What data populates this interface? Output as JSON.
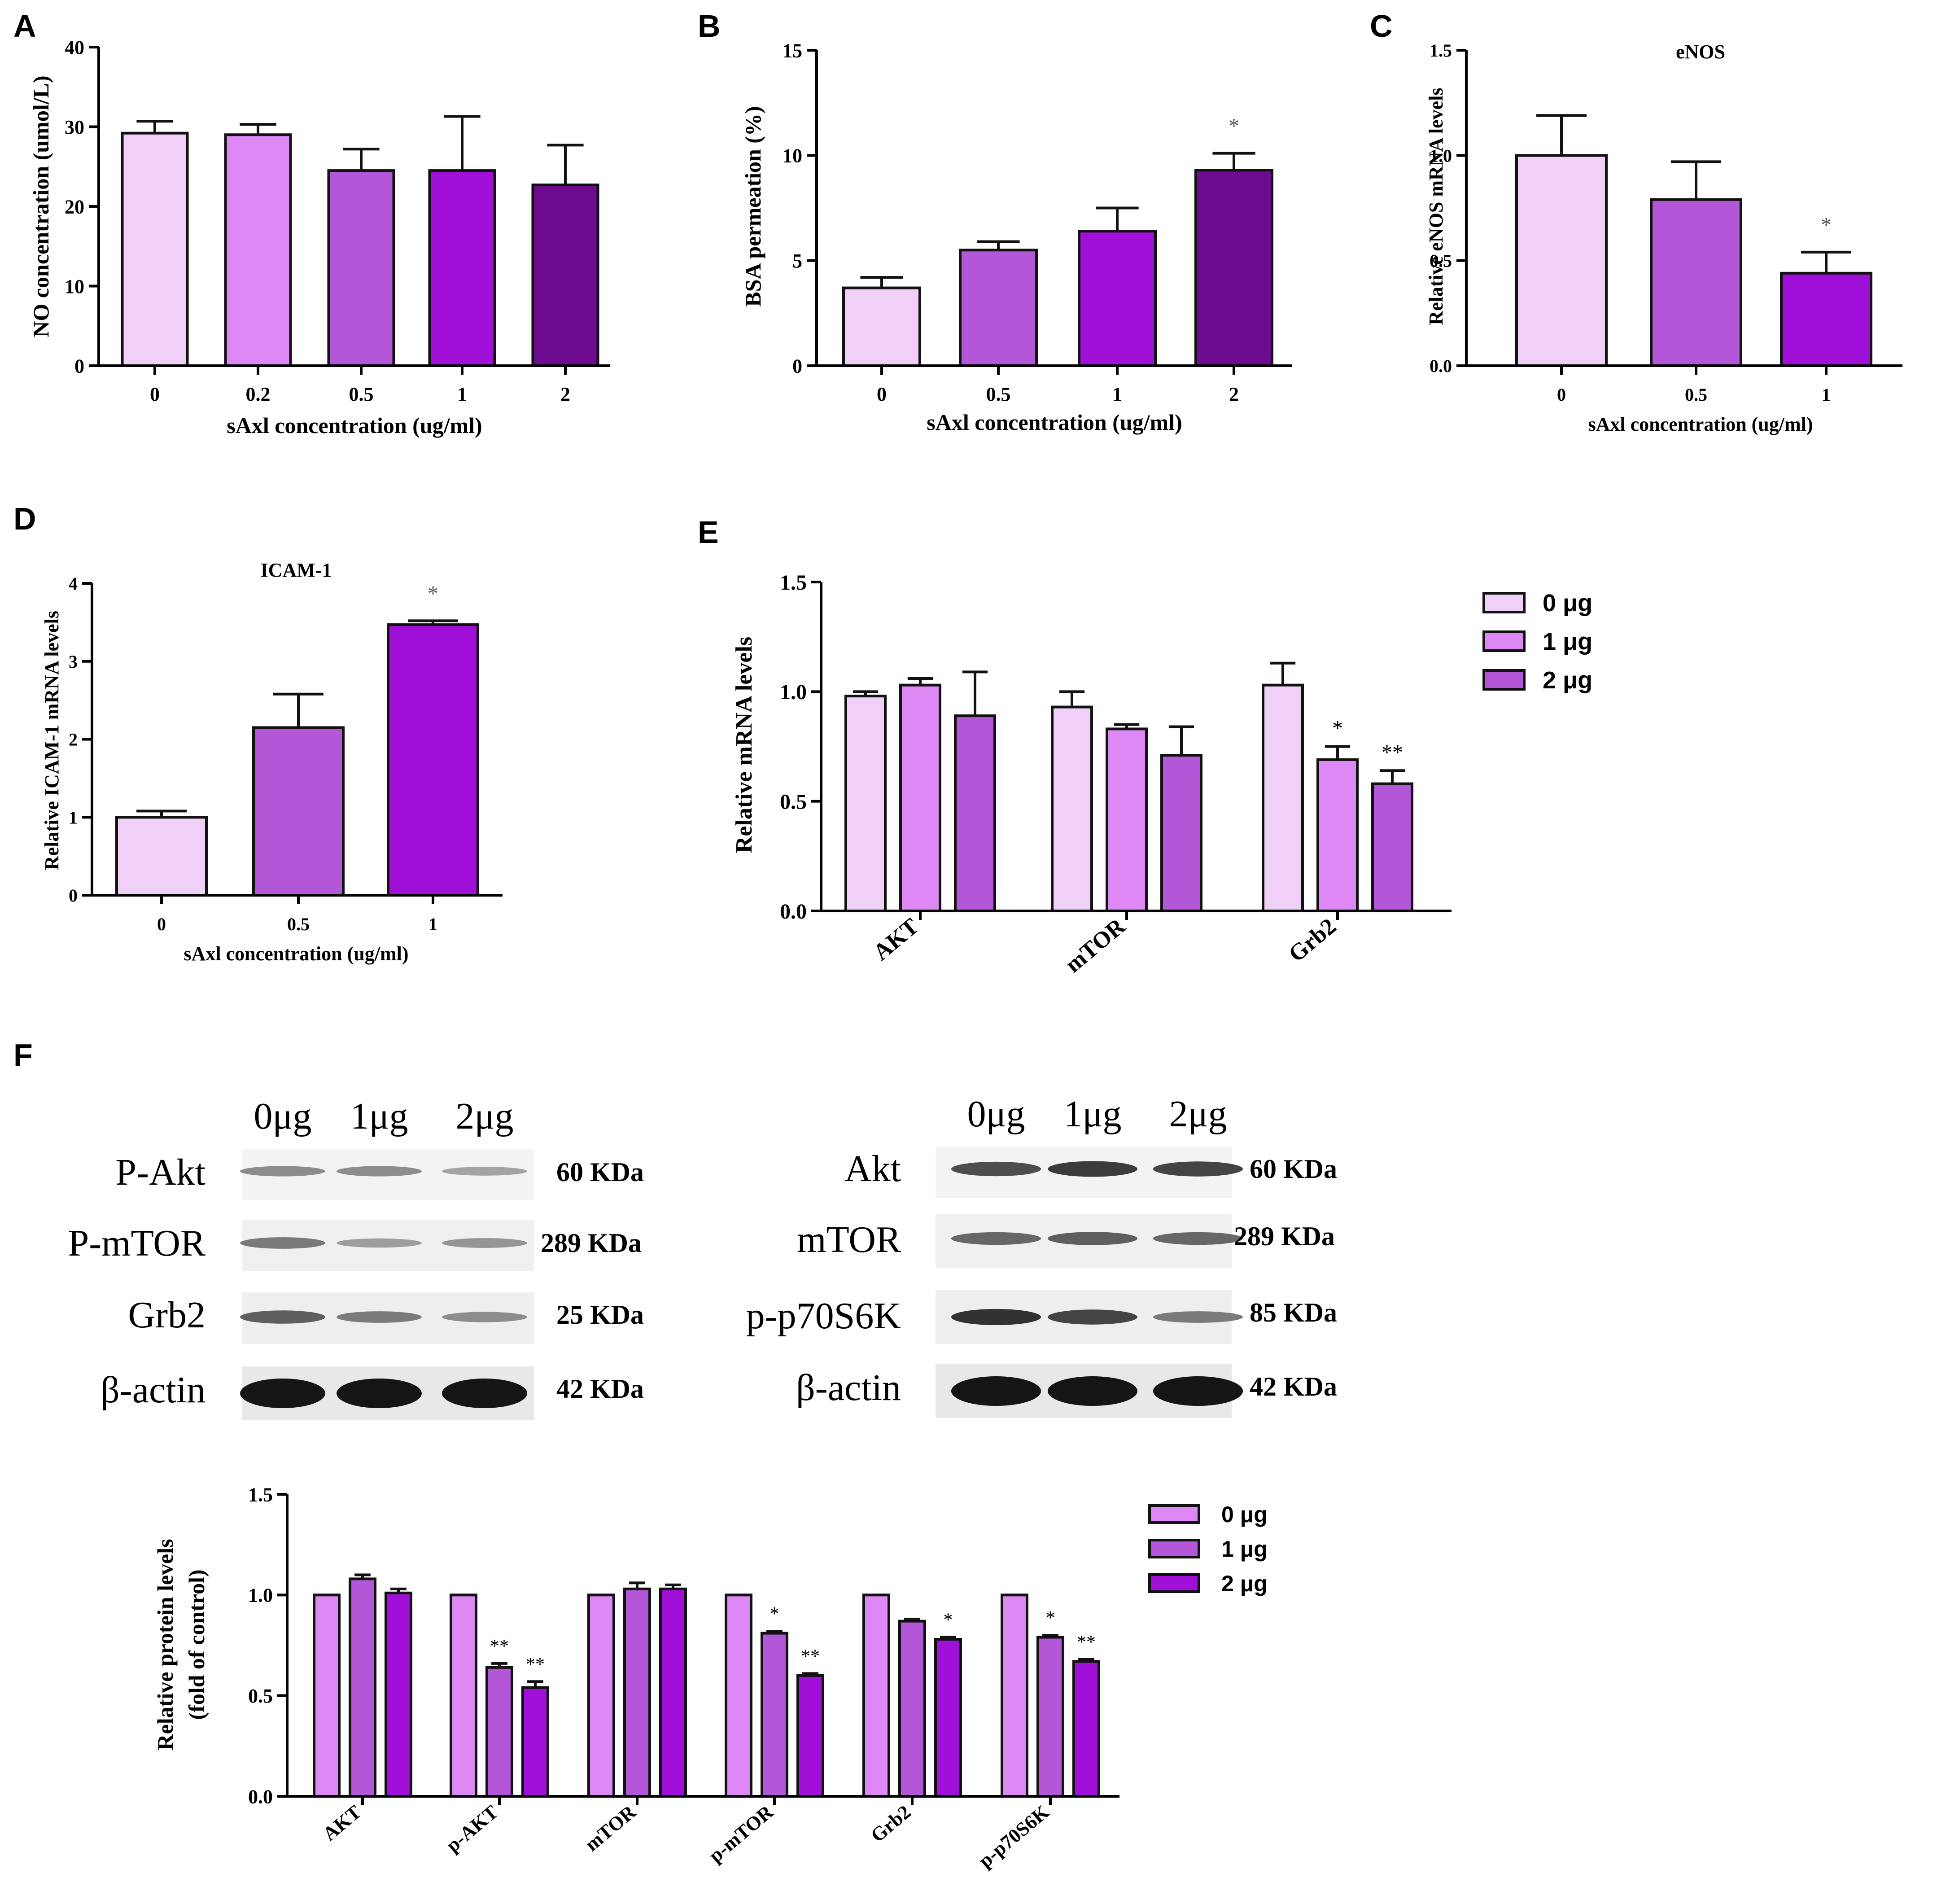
{
  "panel_labels": [
    "A",
    "B",
    "C",
    "D",
    "E",
    "F"
  ],
  "colors": {
    "shade_1": "#f0d0f6",
    "shade_2": "#dd88f4",
    "shade_3": "#b356d8",
    "shade_4": "#a010d8",
    "shade_5": "#6e0c90",
    "protein_0": "#dd88f4",
    "protein_1": "#b356d8",
    "protein_2": "#a010d8",
    "mrna_0": "#f0d0f6",
    "mrna_1": "#dd88f4",
    "mrna_2": "#b356d8"
  },
  "chart_data": [
    {
      "id": "A",
      "type": "bar",
      "title": "",
      "xlabel": "sAxl concentration (ug/ml)",
      "ylabel": "NO concentration (umol/L)",
      "categories": [
        "0",
        "0.2",
        "0.5",
        "1",
        "2"
      ],
      "values": [
        29.2,
        29.0,
        24.5,
        24.5,
        22.7
      ],
      "errors": [
        1.5,
        1.3,
        2.7,
        6.8,
        5.0
      ],
      "significance": [
        "",
        "",
        "",
        "",
        ""
      ],
      "ylim": [
        0,
        40
      ],
      "yticks": [
        "0",
        "10",
        "20",
        "30",
        "40"
      ]
    },
    {
      "id": "B",
      "type": "bar",
      "title": "",
      "xlabel": "sAxl concentration (ug/ml)",
      "ylabel": "BSA permeation (%)",
      "categories": [
        "0",
        "0.5",
        "1",
        "2"
      ],
      "values": [
        3.7,
        5.5,
        6.4,
        9.3
      ],
      "errors": [
        0.5,
        0.4,
        1.1,
        0.8
      ],
      "significance": [
        "",
        "",
        "",
        "*"
      ],
      "ylim": [
        0,
        15
      ],
      "yticks": [
        "0",
        "5",
        "10",
        "15"
      ]
    },
    {
      "id": "C",
      "type": "bar",
      "title": "eNOS",
      "xlabel": "sAxl concentration (ug/ml)",
      "ylabel": "Relative eNOS mRNA levels",
      "categories": [
        "0",
        "0.5",
        "1"
      ],
      "values": [
        1.0,
        0.79,
        0.44
      ],
      "errors": [
        0.19,
        0.18,
        0.1
      ],
      "significance": [
        "",
        "",
        "*"
      ],
      "ylim": [
        0,
        1.5
      ],
      "yticks": [
        "0.0",
        "0.5",
        "1.0",
        "1.5"
      ]
    },
    {
      "id": "D",
      "type": "bar",
      "title": "ICAM-1",
      "xlabel": "sAxl concentration (ug/ml)",
      "ylabel": "Relative ICAM-1 mRNA levels",
      "categories": [
        "0",
        "0.5",
        "1"
      ],
      "values": [
        1.0,
        2.15,
        3.47
      ],
      "errors": [
        0.08,
        0.43,
        0.05
      ],
      "significance": [
        "",
        "",
        "*"
      ],
      "ylim": [
        0,
        4
      ],
      "yticks": [
        "0",
        "1",
        "2",
        "3",
        "4"
      ]
    },
    {
      "id": "E",
      "type": "bar",
      "title": "",
      "xlabel": "",
      "ylabel": "Relative mRNA levels",
      "categories": [
        "AKT",
        "mTOR",
        "Grb2"
      ],
      "series": [
        {
          "name": "0 μg",
          "values": [
            0.98,
            0.93,
            1.03
          ],
          "errors": [
            0.02,
            0.07,
            0.1
          ],
          "significance": [
            "",
            "",
            ""
          ]
        },
        {
          "name": "1 μg",
          "values": [
            1.03,
            0.83,
            0.69
          ],
          "errors": [
            0.03,
            0.02,
            0.06
          ],
          "significance": [
            "",
            "",
            "*"
          ]
        },
        {
          "name": "2 μg",
          "values": [
            0.89,
            0.71,
            0.58
          ],
          "errors": [
            0.2,
            0.13,
            0.06
          ],
          "significance": [
            "",
            "",
            "**"
          ]
        }
      ],
      "ylim": [
        0,
        1.5
      ],
      "yticks": [
        "0.0",
        "0.5",
        "1.0",
        "1.5"
      ]
    },
    {
      "id": "F",
      "type": "bar",
      "title": "",
      "xlabel": "",
      "ylabel": "Relative protein levels (fold of control)",
      "ylabel_lines": [
        "Relative protein levels",
        "(fold of control)"
      ],
      "categories": [
        "AKT",
        "p-AKT",
        "mTOR",
        "p-mTOR",
        "Grb2",
        "p-p70S6K"
      ],
      "series": [
        {
          "name": "0 μg",
          "values": [
            1.0,
            1.0,
            1.0,
            1.0,
            1.0,
            1.0
          ],
          "errors": [
            0,
            0,
            0,
            0,
            0,
            0
          ],
          "significance": [
            "",
            "",
            "",
            "",
            "",
            ""
          ]
        },
        {
          "name": "1 μg",
          "values": [
            1.08,
            0.64,
            1.03,
            0.81,
            0.87,
            0.79
          ],
          "errors": [
            0.02,
            0.02,
            0.03,
            0.01,
            0.01,
            0.01
          ],
          "significance": [
            "",
            "**",
            "",
            "*",
            "",
            "*"
          ]
        },
        {
          "name": "2 μg",
          "values": [
            1.01,
            0.54,
            1.03,
            0.6,
            0.78,
            0.67
          ],
          "errors": [
            0.02,
            0.03,
            0.02,
            0.01,
            0.01,
            0.01
          ],
          "significance": [
            "",
            "**",
            "",
            "**",
            "*",
            "**"
          ]
        }
      ],
      "ylim": [
        0,
        1.5
      ],
      "yticks": [
        "0.0",
        "0.5",
        "1.0",
        "1.5"
      ]
    }
  ],
  "western_blots": [
    {
      "lanes": [
        "0μg",
        "1μg",
        "2μg"
      ],
      "rows": [
        {
          "protein": "P-Akt",
          "size": "60 KDa",
          "intensity": [
            0.35,
            0.35,
            0.22
          ]
        },
        {
          "protein": "P-mTOR",
          "size": "289 KDa",
          "intensity": [
            0.45,
            0.25,
            0.3
          ]
        },
        {
          "protein": "Grb2",
          "size": "25 KDa",
          "intensity": [
            0.6,
            0.45,
            0.35
          ]
        },
        {
          "protein": "β-actin",
          "size": "42 KDa",
          "intensity": [
            1.0,
            1.0,
            1.0
          ]
        }
      ]
    },
    {
      "lanes": [
        "0μg",
        "1μg",
        "2μg"
      ],
      "rows": [
        {
          "protein": "Akt",
          "size": "60 KDa",
          "intensity": [
            0.7,
            0.8,
            0.75
          ]
        },
        {
          "protein": "mTOR",
          "size": "289 KDa",
          "intensity": [
            0.55,
            0.6,
            0.55
          ]
        },
        {
          "protein": "p-p70S6K",
          "size": "85 KDa",
          "intensity": [
            0.85,
            0.75,
            0.45
          ]
        },
        {
          "protein": "β-actin",
          "size": "42 KDa",
          "intensity": [
            1.0,
            1.0,
            1.0
          ]
        }
      ]
    }
  ]
}
